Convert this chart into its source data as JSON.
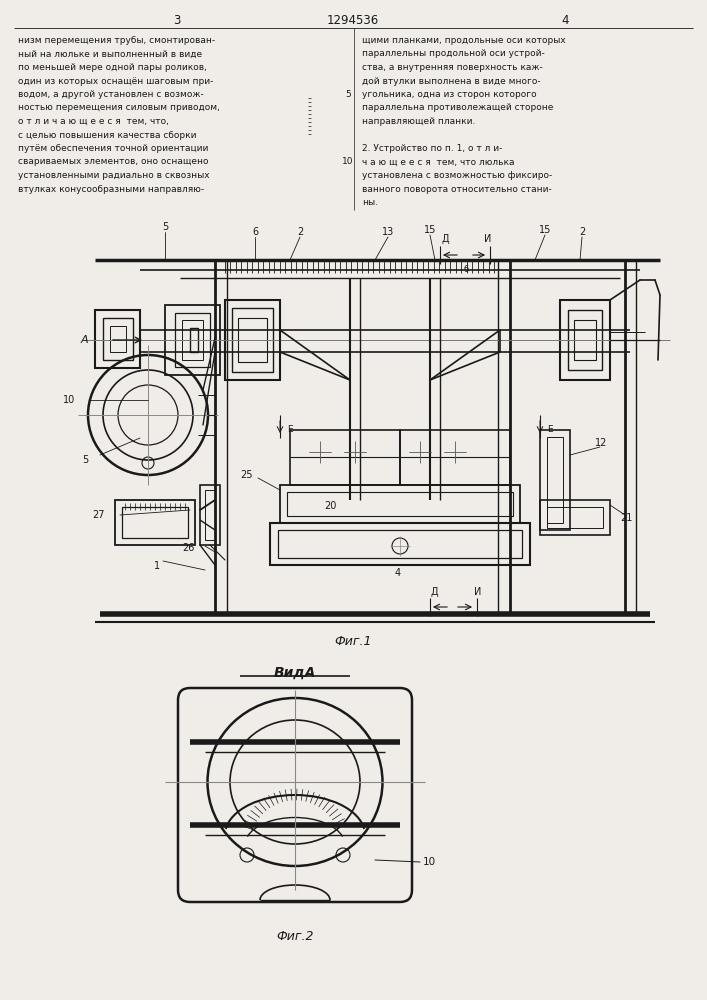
{
  "page_width": 7.07,
  "page_height": 10.0,
  "bg_color": "#f0ede8",
  "text_color": "#1a1a1a",
  "line_color": "#1a1a1a",
  "header": {
    "page_left": "3",
    "title_center": "1294536",
    "page_right": "4"
  },
  "left_column_text": [
    "низм перемещения трубы, смонтирован-",
    "ный на люльке и выполненный в виде",
    "по меньшей мере одной пары роликов,",
    "один из которых оснащён шаговым при-",
    "водом, а другой установлен с возмож-",
    "ностью перемещения силовым приводом,",
    "о т л и ч а ю щ е е с я  тем, что,",
    "с целью повышения качества сборки",
    "путём обеспечения точной ориентации",
    "свариваемых элементов, оно оснащено",
    "установленными радиально в сквозных",
    "втулках конусообразными направляю-"
  ],
  "right_column_text": [
    "щими планками, продольные оси которых",
    "параллельны продольной оси устрой-",
    "ства, а внутренняя поверхность каж-",
    "дой втулки выполнена в виде много-",
    "угольника, одна из сторон которого",
    "параллельна противолежащей стороне",
    "направляющей планки.",
    "",
    "2. Устройство по п. 1, о т л и-",
    "ч а ю щ е е с я  тем, что люлька",
    "установлена с возможностью фиксиро-",
    "ванного поворота относительно стани-",
    "ны."
  ],
  "fig1_caption": "Фиг.1",
  "fig2_title": "ВидА",
  "fig2_caption": "Фиг.2"
}
